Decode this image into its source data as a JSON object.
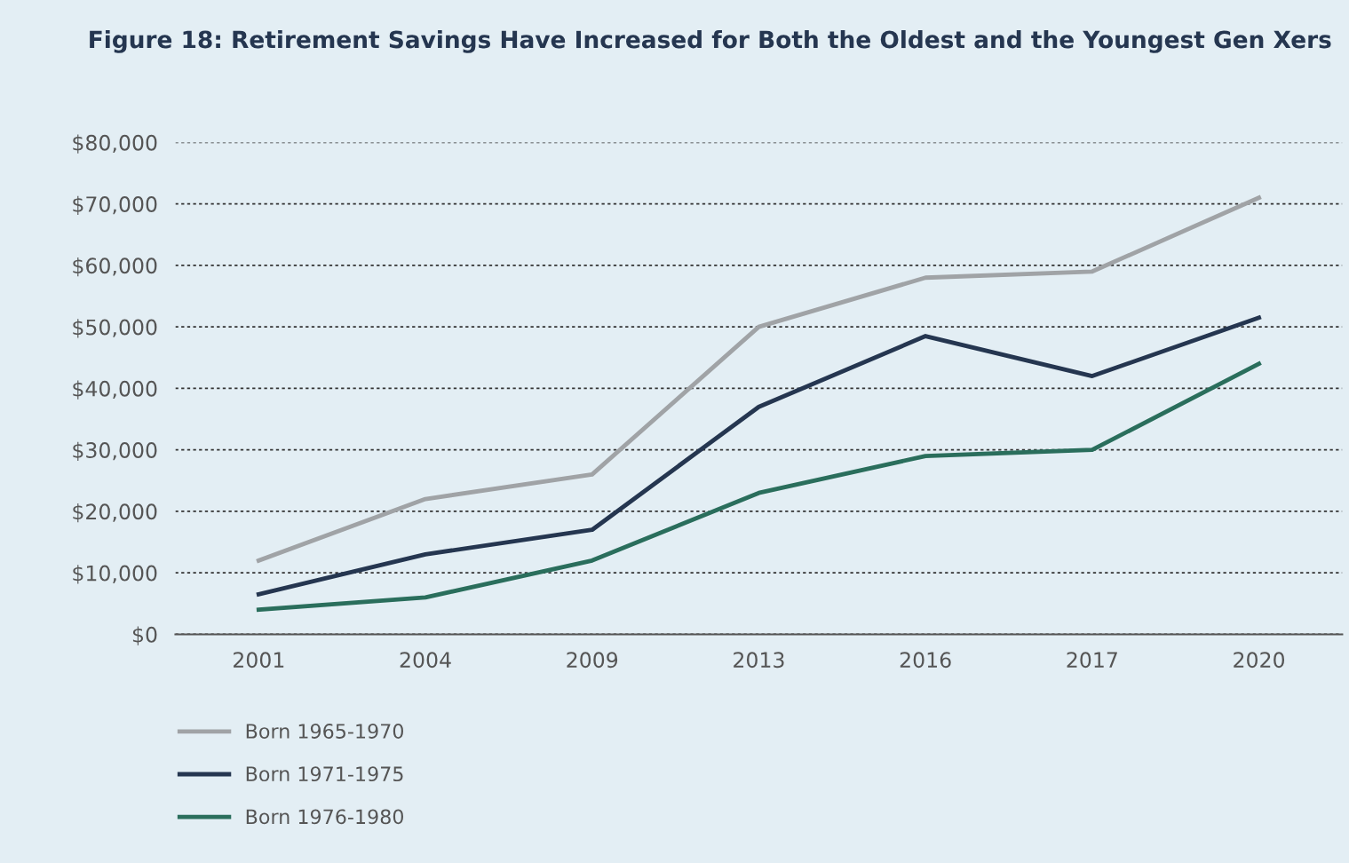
{
  "chart_data": {
    "type": "line",
    "title": "Figure 18: Retirement Savings Have Increased for Both the Oldest and the Youngest Gen Xers",
    "categories": [
      "2001",
      "2004",
      "2009",
      "2013",
      "2016",
      "2017",
      "2020"
    ],
    "series": [
      {
        "name": "Born 1965-1970",
        "color": "#a0a3a6",
        "values": [
          12000,
          22000,
          26000,
          50000,
          58000,
          59000,
          71000
        ]
      },
      {
        "name": "Born 1971-1975",
        "color": "#253650",
        "values": [
          6500,
          13000,
          17000,
          37000,
          48500,
          42000,
          51500
        ]
      },
      {
        "name": "Born 1976-1980",
        "color": "#2a6e5c",
        "values": [
          4000,
          6000,
          12000,
          23000,
          29000,
          30000,
          44000
        ]
      }
    ],
    "ylim": [
      0,
      80000
    ],
    "yticks": [
      {
        "value": 0,
        "label": "$0"
      },
      {
        "value": 10000,
        "label": "$10,000"
      },
      {
        "value": 20000,
        "label": "$20,000"
      },
      {
        "value": 30000,
        "label": "$30,000"
      },
      {
        "value": 40000,
        "label": "$40,000"
      },
      {
        "value": 50000,
        "label": "$50,000"
      },
      {
        "value": 60000,
        "label": "$60,000"
      },
      {
        "value": 70000,
        "label": "$70,000"
      },
      {
        "value": 80000,
        "label": "$80,000"
      }
    ],
    "grid": "y",
    "legend": "bottom left",
    "marker": "none",
    "line_style": "solid"
  }
}
